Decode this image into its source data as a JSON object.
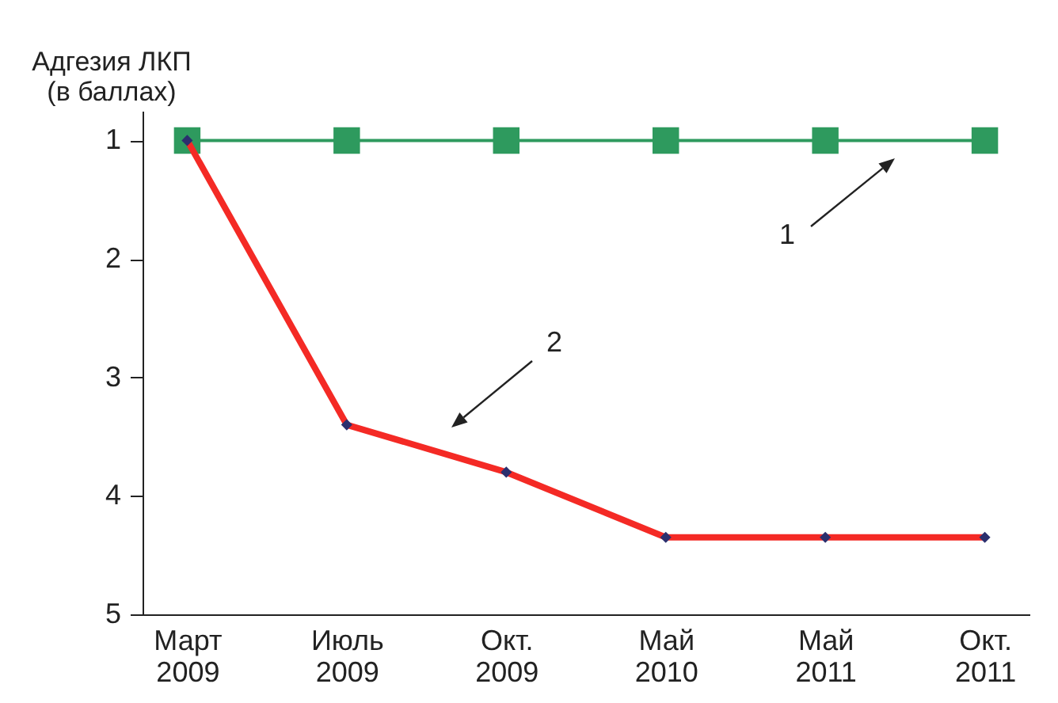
{
  "chart_data": {
    "type": "line",
    "ylabel": "Адгезия ЛКП (в баллах)",
    "categories": [
      "Март 2009",
      "Июль 2009",
      "Окт. 2009",
      "Май 2010",
      "Май 2011",
      "Окт. 2011"
    ],
    "series": [
      {
        "color": "#2e9a5e",
        "marker": "square",
        "values": [
          1,
          1,
          1,
          1,
          1,
          1
        ]
      },
      {
        "color": "#f42a25",
        "marker": "diamond",
        "values": [
          1,
          3.4,
          3.8,
          4.35,
          4.35,
          4.35
        ]
      }
    ],
    "ylim": [
      5,
      0.75
    ],
    "yticks": [
      1,
      2,
      3,
      4,
      5
    ],
    "grid": false,
    "annotations": [
      "1",
      "2"
    ]
  }
}
